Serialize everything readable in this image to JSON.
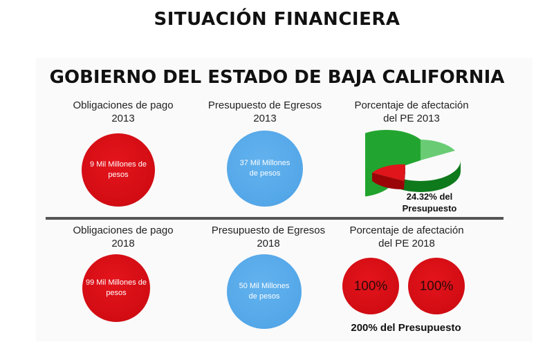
{
  "slide": {
    "title": "SITUACIÓN FINANCIERA",
    "subtitle": "GOBIERNO DEL ESTADO DE BAJA CALIFORNIA"
  },
  "row_2013": {
    "obligations": {
      "line1": "Obligaciones de pago",
      "line2": "2013",
      "value_line1": "9 Mil Millones de",
      "value_line2": "pesos"
    },
    "budget": {
      "line1": "Presupuesto de Egresos",
      "line2": "2013",
      "value_line1": "37 Mil Millones",
      "value_line2": "de pesos"
    },
    "impact": {
      "line1": "Porcentaje de afectación",
      "line2": "del PE 2013",
      "pie_fraction": 0.2432,
      "caption_line1": "24.32% del",
      "caption_line2": "Presupuesto"
    }
  },
  "row_2018": {
    "obligations": {
      "line1": "Obligaciones de pago",
      "line2": "2018",
      "value_line1": "99 Mil Millones de",
      "value_line2": "pesos"
    },
    "budget": {
      "line1": "Presupuesto de Egresos",
      "line2": "2018",
      "value_line1": "50 Mil Millones",
      "value_line2": "de pesos"
    },
    "impact": {
      "line1": "Porcentaje de afectación",
      "line2": "del PE 2018",
      "pct_a": "100%",
      "pct_b": "100%",
      "caption": "200% del Presupuesto"
    }
  },
  "colors": {
    "red": "#d20c13",
    "blue": "#54a7e8",
    "green": "#1e9a2a"
  }
}
